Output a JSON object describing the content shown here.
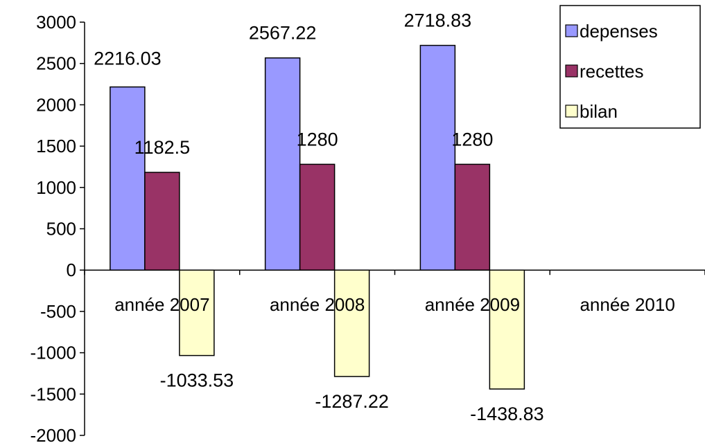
{
  "chart_data": {
    "type": "bar",
    "categories": [
      "année 2007",
      "année 2008",
      "année 2009",
      "année 2010"
    ],
    "series": [
      {
        "name": "depenses",
        "values": [
          2216.03,
          2567.22,
          2718.83,
          null
        ],
        "color": "#9999ff",
        "labels": [
          "2216.03",
          "2567.22",
          "2718.83",
          null
        ]
      },
      {
        "name": "recettes",
        "values": [
          1182.5,
          1280,
          1280,
          null
        ],
        "color": "#993366",
        "labels": [
          "1182.5",
          "1280",
          "1280",
          null
        ]
      },
      {
        "name": "bilan",
        "values": [
          -1033.53,
          -1287.22,
          -1438.83,
          null
        ],
        "color": "#ffffcc",
        "labels": [
          "-1033.53",
          "-1287.22",
          "-1438.83",
          null
        ]
      }
    ],
    "ylim": [
      -2000,
      3000
    ],
    "y_ticks": [
      3000,
      2500,
      2000,
      1500,
      1000,
      500,
      0,
      -500,
      -1000,
      -1500,
      -2000
    ],
    "y_tick_labels": [
      "3000",
      "2500",
      "2000",
      "1500",
      "1000",
      "500",
      "0",
      "-500",
      "-1000",
      "-1500",
      "-2000"
    ],
    "grid": false,
    "legend": "top-right",
    "title": "",
    "xlabel": "",
    "ylabel": ""
  }
}
